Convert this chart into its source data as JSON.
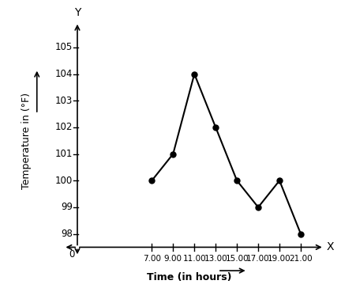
{
  "x": [
    7,
    9,
    11,
    13,
    15,
    17,
    19,
    21
  ],
  "y": [
    100,
    101,
    104,
    102,
    100,
    99,
    100,
    98
  ],
  "x_ticks": [
    7,
    9,
    11,
    13,
    15,
    17,
    19,
    21
  ],
  "x_tick_labels": [
    "7.00",
    "9.00",
    "11.00",
    "13.00",
    "15.00",
    "17.00",
    "19.00",
    "21.00"
  ],
  "y_ticks": [
    98,
    99,
    100,
    101,
    102,
    103,
    104,
    105
  ],
  "xlim": [
    -1.5,
    23.5
  ],
  "ylim": [
    97.1,
    106.2
  ],
  "y_axis_bottom": 97.5,
  "x_axis_left": 0,
  "xlabel": "Time (in hours)",
  "ylabel": "Temperature in (°F)",
  "line_color": "#000000",
  "marker_size": 5,
  "background_color": "#ffffff",
  "line_width": 1.5
}
